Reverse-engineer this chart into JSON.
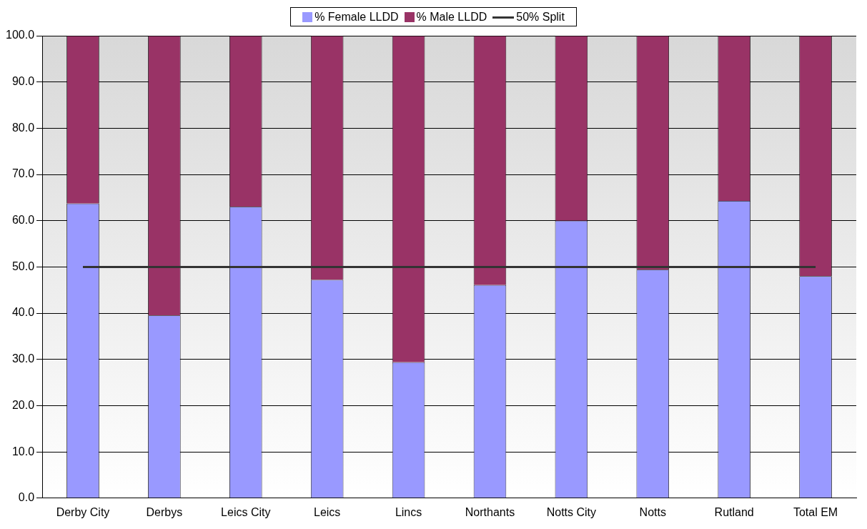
{
  "chart_data": {
    "type": "bar",
    "stacked": true,
    "categories": [
      "Derby City",
      "Derbys",
      "Leics City",
      "Leics",
      "Lincs",
      "Northants",
      "Notts City",
      "Notts",
      "Rutland",
      "Total EM"
    ],
    "series": [
      {
        "name": "% Female LLDD",
        "color": "#9999ff",
        "values": [
          63.7,
          39.5,
          63.0,
          47.2,
          29.4,
          46.1,
          60.0,
          49.4,
          64.3,
          48.0
        ]
      },
      {
        "name": "% Male LLDD",
        "color": "#993366",
        "values": [
          36.3,
          60.5,
          37.0,
          52.8,
          70.6,
          53.9,
          40.0,
          50.6,
          35.7,
          52.0
        ]
      },
      {
        "name": "50% Split",
        "type": "line",
        "color": "#333333",
        "values": [
          50,
          50,
          50,
          50,
          50,
          50,
          50,
          50,
          50,
          50
        ]
      }
    ],
    "ylim": [
      0,
      100
    ],
    "yticks": [
      {
        "value": 0,
        "label": "0.0"
      },
      {
        "value": 10,
        "label": "10.0"
      },
      {
        "value": 20,
        "label": "20.0"
      },
      {
        "value": 30,
        "label": "30.0"
      },
      {
        "value": 40,
        "label": "40.0"
      },
      {
        "value": 50,
        "label": "50.0"
      },
      {
        "value": 60,
        "label": "60.0"
      },
      {
        "value": 70,
        "label": "70.0"
      },
      {
        "value": 80,
        "label": "80.0"
      },
      {
        "value": 90,
        "label": "90.0"
      },
      {
        "value": 100,
        "label": "100.0"
      }
    ],
    "grid": "y",
    "legend": "top",
    "marker": "none"
  }
}
